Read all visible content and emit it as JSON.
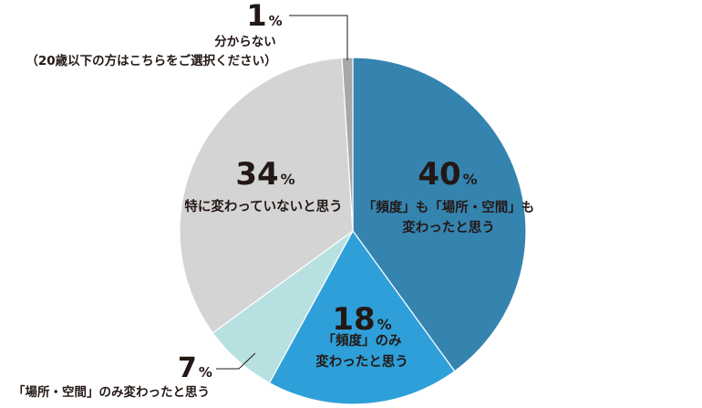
{
  "chart_data": {
    "type": "pie",
    "unit": "%",
    "slices": [
      {
        "value": 40,
        "label_lines": [
          "「頻度」も「場所・空間」も",
          "変わったと思う"
        ],
        "color": "#3584b0"
      },
      {
        "value": 18,
        "label_lines": [
          "「頻度」のみ",
          "変わったと思う"
        ],
        "color": "#2e9fd8"
      },
      {
        "value": 7,
        "label_lines": [
          "「場所・空間」のみ変わったと思う"
        ],
        "color": "#b7e0e1"
      },
      {
        "value": 34,
        "label_lines": [
          "特に変わっていないと思う"
        ],
        "color": "#d4d4d4"
      },
      {
        "value": 1,
        "label_lines": [
          "分からない",
          "（20歳以下の方はこちらをご選択ください）"
        ],
        "color": "#a7a7a7"
      }
    ]
  }
}
